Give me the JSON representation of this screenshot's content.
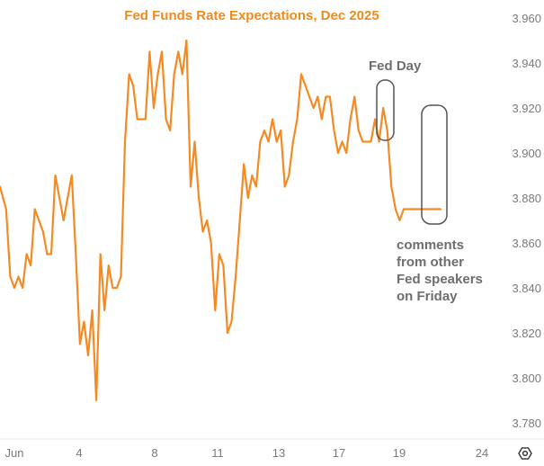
{
  "chart_data": {
    "type": "line",
    "title": "Fed Funds Rate Expectations, Dec 2025",
    "x_ticks": [
      "Jun",
      "4",
      "8",
      "11",
      "13",
      "17",
      "19",
      "24"
    ],
    "y_ticks": [
      "3.960",
      "3.940",
      "3.920",
      "3.900",
      "3.880",
      "3.860",
      "3.840",
      "3.820",
      "3.800",
      "3.780"
    ],
    "ylim": [
      3.775,
      3.965
    ],
    "grid": false,
    "series": [
      {
        "color": "#f58a23",
        "x": [
          0.0,
          0.3,
          0.5,
          0.7,
          0.9,
          1.1,
          1.3,
          1.5,
          1.7,
          1.9,
          2.1,
          2.3,
          2.5,
          2.7,
          2.9,
          3.1,
          3.3,
          3.5,
          3.7,
          3.9,
          4.1,
          4.3,
          4.5,
          4.7,
          4.9,
          5.1,
          5.3,
          5.5,
          5.7,
          5.9,
          6.1,
          6.3,
          6.5,
          6.7,
          6.9,
          7.1,
          7.3,
          7.5,
          7.7,
          7.9,
          8.1,
          8.3,
          8.5,
          8.7,
          8.9,
          9.1,
          9.3,
          9.5,
          9.7,
          9.9,
          10.1,
          10.3,
          10.5,
          10.7,
          10.9,
          11.1,
          11.3,
          11.5,
          11.7,
          11.9,
          12.1,
          12.3,
          12.5,
          12.7,
          12.9,
          13.1,
          13.3,
          13.5,
          13.7,
          13.9,
          14.1,
          14.3,
          14.5,
          14.7,
          14.9,
          15.1,
          15.3,
          15.5,
          15.7,
          15.9,
          16.1,
          16.3,
          16.5,
          16.7,
          16.9,
          17.1,
          17.3,
          17.5,
          17.7,
          17.9,
          18.1,
          18.3,
          18.5,
          18.7,
          18.9,
          19.1,
          19.3,
          19.5,
          19.7,
          19.9,
          20.1,
          20.3,
          20.5,
          20.7,
          20.9,
          21.1,
          21.3,
          21.5
        ],
        "y": [
          3.885,
          3.875,
          3.845,
          3.84,
          3.845,
          3.84,
          3.855,
          3.85,
          3.875,
          3.87,
          3.865,
          3.855,
          3.855,
          3.89,
          3.88,
          3.87,
          3.88,
          3.89,
          3.855,
          3.815,
          3.825,
          3.81,
          3.83,
          3.79,
          3.855,
          3.83,
          3.85,
          3.84,
          3.84,
          3.845,
          3.905,
          3.935,
          3.93,
          3.915,
          3.915,
          3.915,
          3.945,
          3.92,
          3.935,
          3.945,
          3.915,
          3.91,
          3.935,
          3.945,
          3.935,
          3.95,
          3.885,
          3.905,
          3.88,
          3.865,
          3.87,
          3.86,
          3.83,
          3.855,
          3.85,
          3.82,
          3.825,
          3.845,
          3.87,
          3.895,
          3.88,
          3.89,
          3.885,
          3.905,
          3.91,
          3.905,
          3.915,
          3.905,
          3.91,
          3.885,
          3.89,
          3.905,
          3.915,
          3.935,
          3.93,
          3.925,
          3.92,
          3.925,
          3.915,
          3.925,
          3.925,
          3.91,
          3.9,
          3.905,
          3.9,
          3.915,
          3.925,
          3.91,
          3.905,
          3.905,
          3.905,
          3.915,
          3.905,
          3.92,
          3.91,
          3.885,
          3.875,
          3.87,
          3.875,
          3.875,
          3.875,
          3.875,
          3.875,
          3.875,
          3.875,
          3.875,
          3.875,
          3.875
        ]
      }
    ],
    "annotations": [
      {
        "label": "Fed Day"
      },
      {
        "label": "comments from other Fed speakers on Friday"
      }
    ]
  },
  "ui": {
    "settings_icon": "settings-gear-icon"
  }
}
